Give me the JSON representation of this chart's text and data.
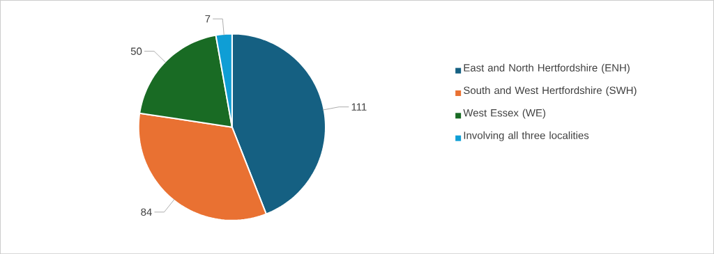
{
  "chart_data": {
    "type": "pie",
    "categories": [
      "East and North Hertfordshire (ENH)",
      "South and West Hertfordshire (SWH)",
      "West Essex (WE)",
      "Involving all three localities"
    ],
    "values": [
      111,
      84,
      50,
      7
    ],
    "colors": [
      "#156082",
      "#e97132",
      "#196b24",
      "#0f9ed5"
    ],
    "data_labels": true,
    "legend": "right"
  }
}
